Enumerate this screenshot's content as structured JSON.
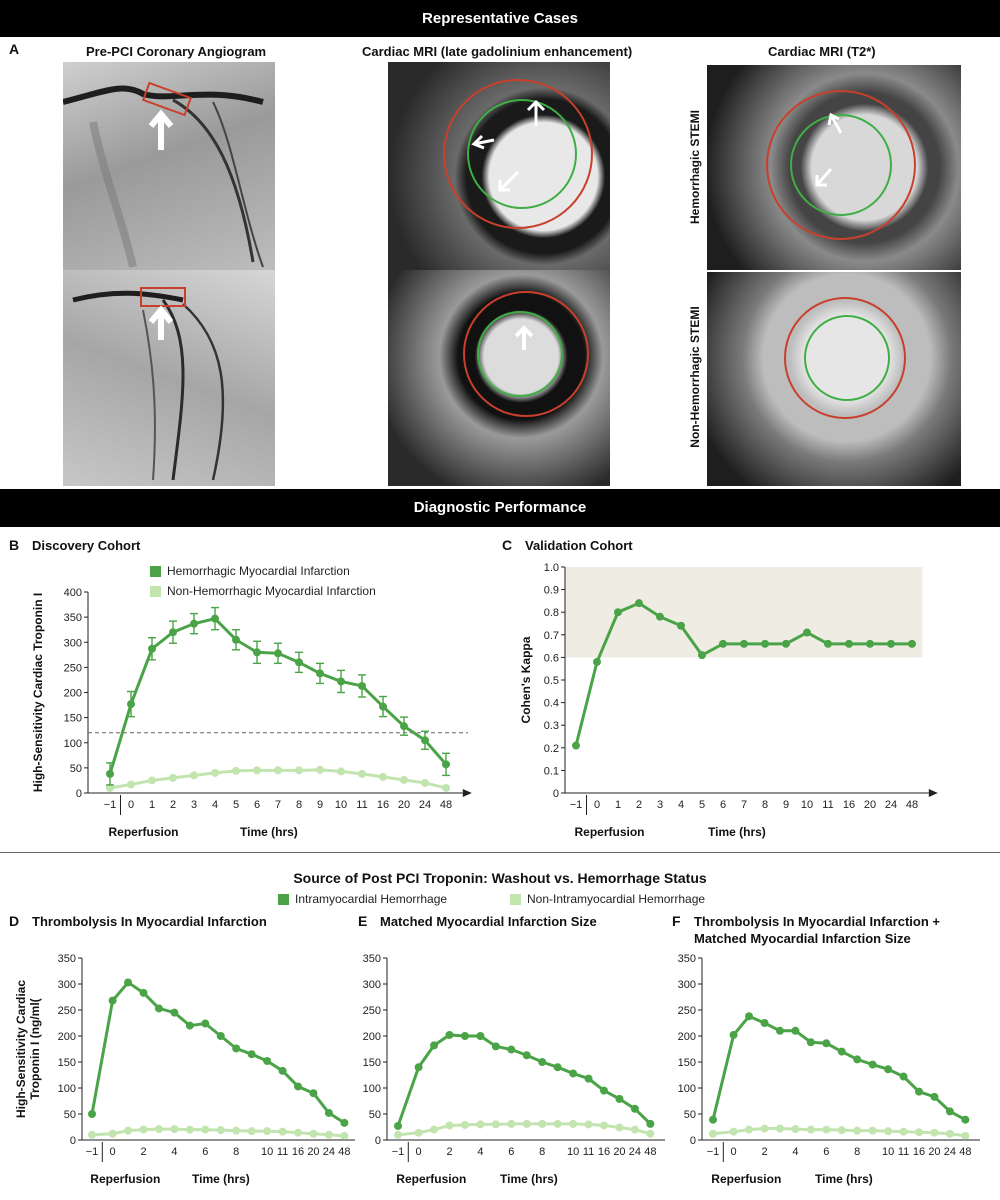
{
  "header": {
    "cases_title": "Representative Cases",
    "performance_title": "Diagnostic Performance",
    "source_title": "Source of Post PCI Troponin: Washout vs. Hemorrhage Status"
  },
  "panel_a": {
    "letter": "A",
    "col1": "Pre-PCI Coronary Angiogram",
    "col2": "Cardiac MRI (late gadolinium enhancement)",
    "col3": "Cardiac MRI (T2*)",
    "row1": "Hemorrhagic STEMI",
    "row2": "Non-Hemorrhagic STEMI"
  },
  "colors": {
    "dark_green": "#4aa447",
    "light_green": "#c2e4ae",
    "ring_red": "#c8402c",
    "ring_green": "#3fae44",
    "shade": "#efece4"
  },
  "chart_data": [
    {
      "panel": "B",
      "type": "line",
      "title": "Discovery Cohort",
      "ylabel": "High-Sensitivity Cardiac Troponin I",
      "xlabel": "Time (hrs)",
      "x_annotation": "Reperfusion",
      "categories": [
        "−1",
        "0",
        "1",
        "2",
        "3",
        "4",
        "5",
        "6",
        "7",
        "8",
        "9",
        "10",
        "11",
        "16",
        "20",
        "24",
        "48"
      ],
      "ylim": [
        0,
        400
      ],
      "yticks": [
        "0",
        "50",
        "100",
        "150",
        "200",
        "250",
        "300",
        "350",
        "400"
      ],
      "reference_line": 120,
      "series": [
        {
          "name": "Hemorrhagic Myocardial Infarction",
          "values": [
            38,
            177,
            287,
            320,
            337,
            347,
            305,
            280,
            278,
            260,
            238,
            222,
            213,
            172,
            133,
            105,
            57
          ],
          "error": [
            22,
            25,
            22,
            22,
            20,
            22,
            20,
            22,
            20,
            20,
            20,
            22,
            22,
            20,
            18,
            18,
            22
          ]
        },
        {
          "name": "Non-Hemorrhagic Myocardial Infarction",
          "values": [
            10,
            17,
            25,
            30,
            35,
            40,
            44,
            45,
            45,
            45,
            46,
            43,
            38,
            32,
            26,
            20,
            10
          ]
        }
      ]
    },
    {
      "panel": "C",
      "type": "line",
      "title": "Validation Cohort",
      "ylabel": "Cohen's Kappa",
      "xlabel": "Time (hrs)",
      "x_annotation": "Reperfusion",
      "categories": [
        "−1",
        "0",
        "1",
        "2",
        "3",
        "4",
        "5",
        "6",
        "7",
        "8",
        "9",
        "10",
        "11",
        "16",
        "20",
        "24",
        "48"
      ],
      "ylim": [
        0,
        1.0
      ],
      "yticks": [
        "0",
        "0.1",
        "0.2",
        "0.3",
        "0.4",
        "0.5",
        "0.6",
        "0.7",
        "0.8",
        "0.9",
        "1.0"
      ],
      "shaded_band": [
        0.6,
        1.0
      ],
      "series": [
        {
          "values": [
            0.21,
            0.58,
            0.8,
            0.84,
            0.78,
            0.74,
            0.61,
            0.66,
            0.66,
            0.66,
            0.66,
            0.71,
            0.66,
            0.66,
            0.66,
            0.66,
            0.66
          ]
        }
      ]
    },
    {
      "panel": "D",
      "type": "line",
      "title": "Thrombolysis In Myocardial Infarction",
      "ylabel": "High-Sensitivity Cardiac Troponin I (ng/ml(",
      "xlabel": "Time (hrs)",
      "x_annotation": "Reperfusion",
      "x_positions": [
        -1,
        0,
        1,
        2,
        3,
        4,
        5,
        6,
        7,
        8,
        9,
        10,
        11,
        16,
        20,
        24,
        48
      ],
      "xticks": [
        "−1",
        "0",
        "2",
        "4",
        "6",
        "8",
        "10",
        "11",
        "16",
        "20",
        "24",
        "48"
      ],
      "ylim": [
        0,
        350
      ],
      "yticks": [
        "0",
        "50",
        "100",
        "150",
        "200",
        "250",
        "300",
        "350"
      ],
      "series": [
        {
          "name": "Intramyocardial Hemorrhage",
          "values": [
            50,
            268,
            303,
            283,
            253,
            245,
            220,
            224,
            200,
            176,
            165,
            152,
            133,
            103,
            90,
            52,
            33
          ]
        },
        {
          "name": "Non-Intramyocardial Hemorrhage",
          "values": [
            10,
            12,
            18,
            20,
            21,
            21,
            20,
            20,
            19,
            18,
            17,
            17,
            16,
            14,
            12,
            10,
            8
          ]
        }
      ]
    },
    {
      "panel": "E",
      "type": "line",
      "title": "Matched Myocardial Infarction Size",
      "ylabel": "",
      "xlabel": "Time (hrs)",
      "x_annotation": "Reperfusion",
      "x_positions": [
        -1,
        0,
        1,
        2,
        3,
        4,
        5,
        6,
        7,
        8,
        9,
        10,
        11,
        16,
        20,
        24,
        48
      ],
      "xticks": [
        "−1",
        "0",
        "2",
        "4",
        "6",
        "8",
        "10",
        "11",
        "16",
        "20",
        "24",
        "48"
      ],
      "ylim": [
        0,
        350
      ],
      "yticks": [
        "0",
        "50",
        "100",
        "150",
        "200",
        "250",
        "300",
        "350"
      ],
      "series": [
        {
          "name": "Intramyocardial Hemorrhage",
          "values": [
            27,
            140,
            182,
            202,
            200,
            200,
            180,
            174,
            163,
            150,
            140,
            128,
            118,
            95,
            79,
            60,
            31
          ]
        },
        {
          "name": "Non-Intramyocardial Hemorrhage",
          "values": [
            10,
            14,
            20,
            28,
            29,
            30,
            30,
            31,
            31,
            31,
            31,
            31,
            30,
            28,
            24,
            20,
            12
          ]
        }
      ]
    },
    {
      "panel": "F",
      "type": "line",
      "title": "Thrombolysis In Myocardial Infarction + Matched Myocardial Infarction Size",
      "title_line1": "Thrombolysis In Myocardial Infarction +",
      "title_line2": "Matched Myocardial Infarction Size",
      "ylabel": "",
      "xlabel": "Time (hrs)",
      "x_annotation": "Reperfusion",
      "x_positions": [
        -1,
        0,
        1,
        2,
        3,
        4,
        5,
        6,
        7,
        8,
        9,
        10,
        11,
        16,
        20,
        24,
        48
      ],
      "xticks": [
        "−1",
        "0",
        "2",
        "4",
        "6",
        "8",
        "10",
        "11",
        "16",
        "20",
        "24",
        "48"
      ],
      "ylim": [
        0,
        350
      ],
      "yticks": [
        "0",
        "50",
        "100",
        "150",
        "200",
        "250",
        "300",
        "350"
      ],
      "series": [
        {
          "name": "Intramyocardial Hemorrhage",
          "values": [
            39,
            202,
            238,
            225,
            210,
            210,
            188,
            186,
            170,
            155,
            145,
            136,
            122,
            93,
            83,
            55,
            39
          ]
        },
        {
          "name": "Non-Intramyocardial Hemorrhage",
          "values": [
            12,
            16,
            20,
            22,
            22,
            21,
            20,
            20,
            19,
            18,
            18,
            17,
            16,
            15,
            14,
            12,
            8
          ]
        }
      ]
    }
  ],
  "legend_b": {
    "item1": "Hemorrhagic Myocardial Infarction",
    "item2": "Non-Hemorrhagic Myocardial Infarction"
  },
  "legend_def": {
    "item1": "Intramyocardial Hemorrhage",
    "item2": "Non-Intramyocardial Hemorrhage"
  }
}
